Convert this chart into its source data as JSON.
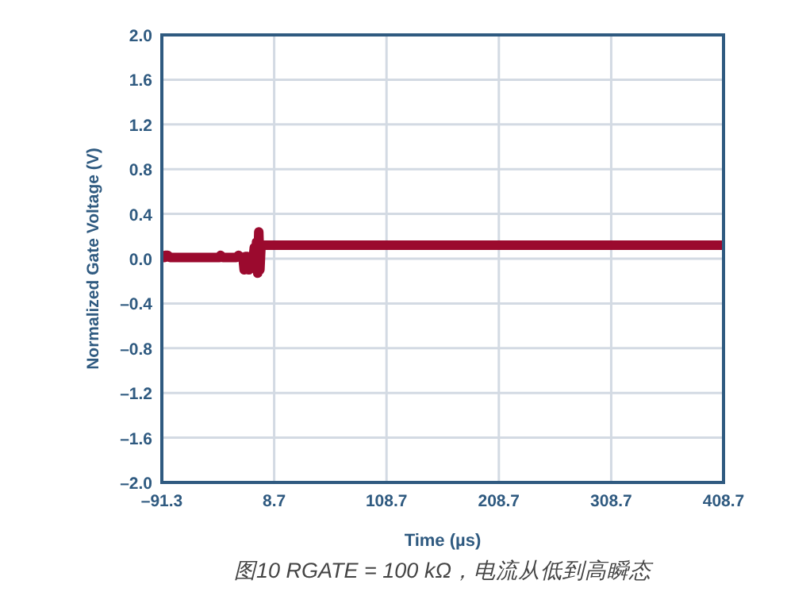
{
  "chart_data": {
    "type": "line",
    "xlabel": "Time (µs)",
    "ylabel": "Normalized Gate Voltage (V)",
    "annotations": [
      "图10 RGATE = 100 kΩ，电流从低到高瞬态"
    ],
    "xlim": [
      -91.3,
      408.7
    ],
    "ylim": [
      -2.0,
      2.0
    ],
    "xticks": [
      {
        "value": -91.3,
        "label": "–91.3"
      },
      8.7,
      108.7,
      208.7,
      308.7,
      408.7
    ],
    "yticks": [
      {
        "value": -2.0,
        "label": "–2.0"
      },
      {
        "value": -1.6,
        "label": "–1.6"
      },
      {
        "value": -1.2,
        "label": "–1.2"
      },
      {
        "value": -0.8,
        "label": "–0.8"
      },
      {
        "value": -0.4,
        "label": "–0.4"
      },
      {
        "value": 0.0,
        "label": "0.0"
      },
      {
        "value": 0.4,
        "label": "0.4"
      },
      {
        "value": 0.8,
        "label": "0.8"
      },
      {
        "value": 1.2,
        "label": "1.2"
      },
      {
        "value": 1.6,
        "label": "1.6"
      },
      {
        "value": 2.0,
        "label": "2.0"
      }
    ],
    "grid": true,
    "marker": "none",
    "line_style": "solid",
    "series": [
      {
        "color": "#9b0a2e",
        "x": [
          -91.3,
          -89,
          -88,
          -86,
          -84,
          -70,
          -55,
          -40,
          -39,
          -37,
          -25,
          -23,
          -21,
          -19,
          -18,
          -17,
          -15,
          -14,
          -13,
          -11,
          -10,
          -9,
          -8,
          -7,
          -6,
          -5,
          -4,
          -3,
          -2,
          0,
          20,
          50,
          60,
          62,
          80,
          100,
          120,
          140,
          160,
          180,
          200,
          220,
          240,
          260,
          280,
          300,
          320,
          340,
          360,
          380,
          400,
          408.7
        ],
        "values": [
          0.01,
          0.01,
          0.03,
          0.03,
          0.01,
          0.01,
          0.01,
          0.01,
          0.03,
          0.01,
          0.01,
          0.03,
          0.01,
          0.0,
          -0.1,
          0.02,
          0.02,
          -0.1,
          0.0,
          -0.07,
          0.0,
          0.1,
          -0.05,
          0.15,
          -0.13,
          0.24,
          -0.1,
          0.12,
          0.12,
          0.12,
          0.12,
          0.12,
          0.12,
          0.12,
          0.12,
          0.12,
          0.12,
          0.12,
          0.12,
          0.12,
          0.12,
          0.12,
          0.12,
          0.12,
          0.12,
          0.12,
          0.12,
          0.12,
          0.12,
          0.12,
          0.12,
          0.12
        ]
      }
    ]
  }
}
